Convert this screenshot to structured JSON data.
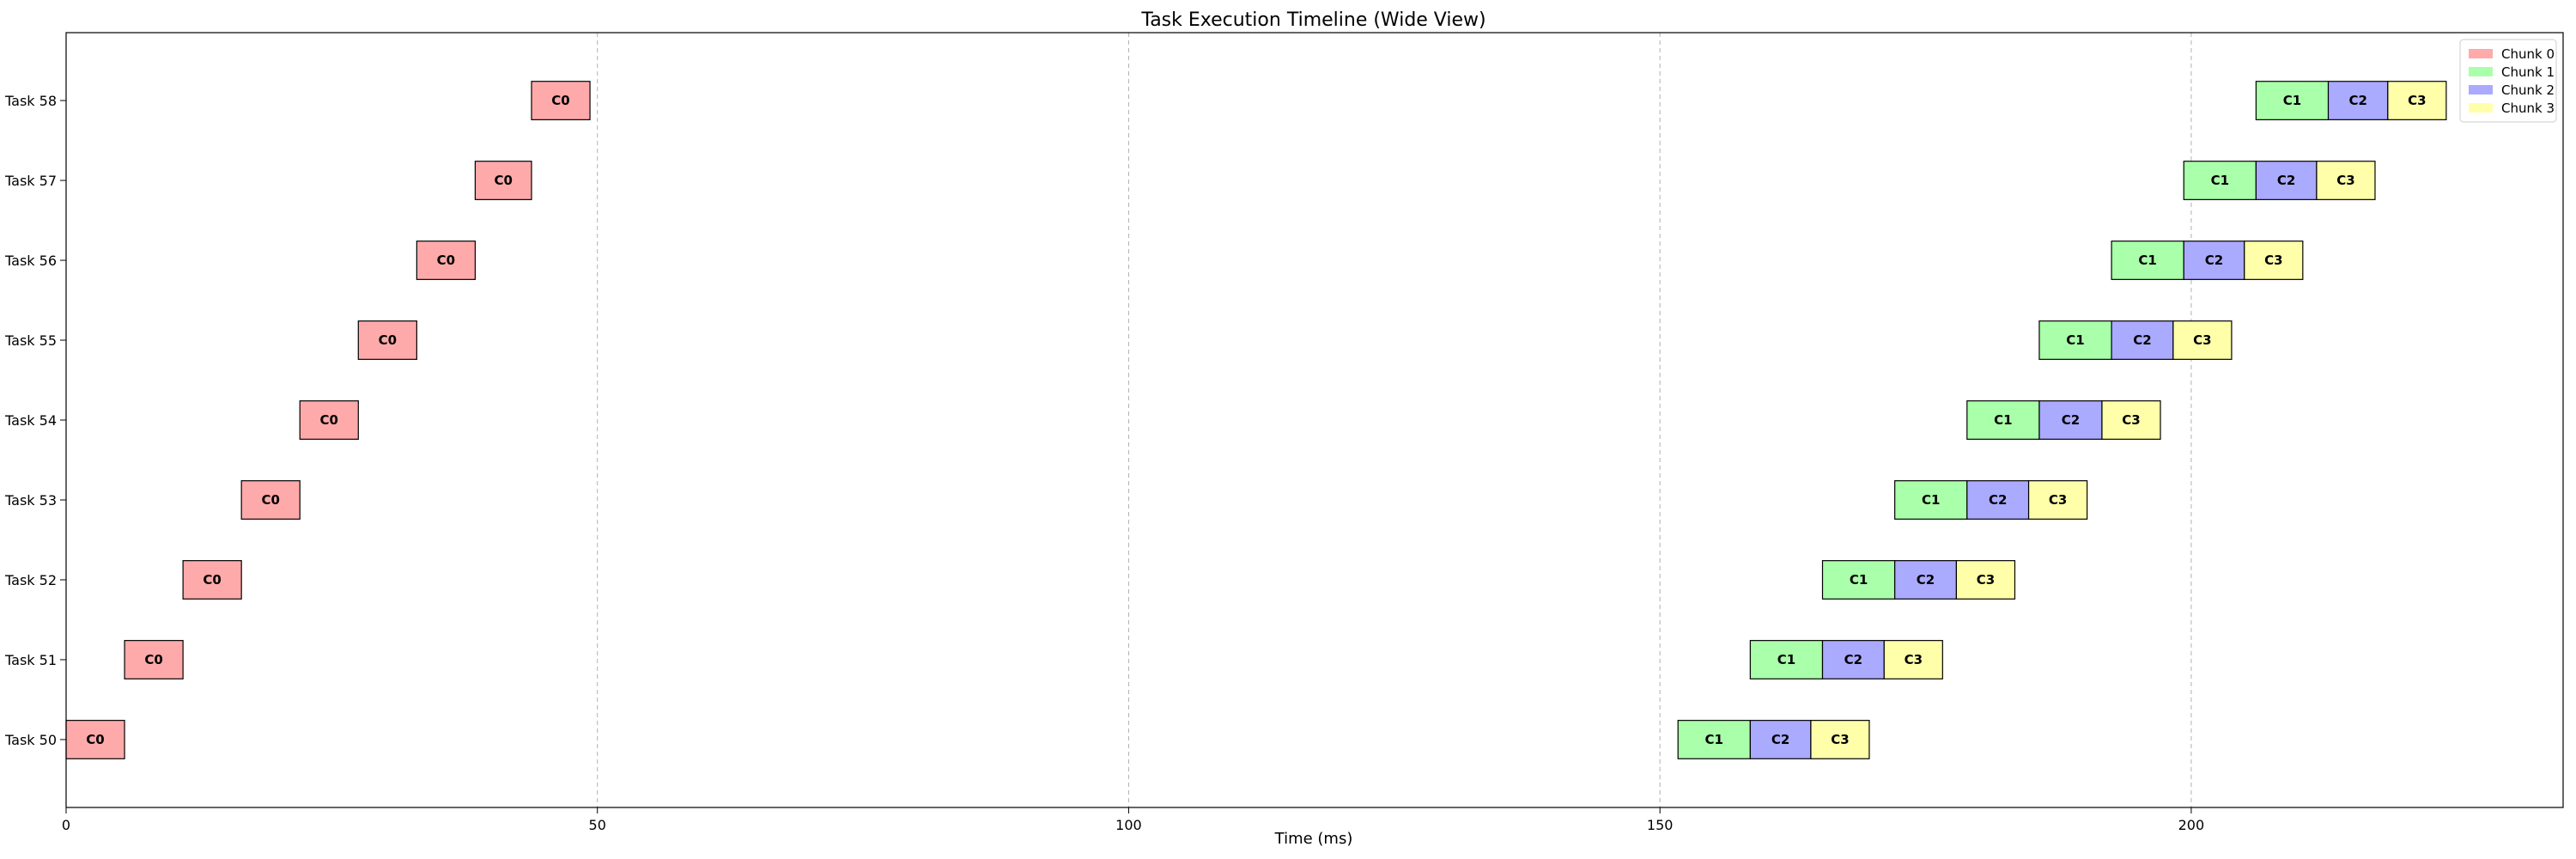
{
  "chart_data": {
    "type": "bar",
    "orientation": "horizontal-timeline",
    "title": "Task Execution Timeline (Wide View)",
    "xlabel": "Time (ms)",
    "ylabel": "",
    "xlim": [
      0,
      235
    ],
    "xticks": [
      0,
      50,
      100,
      150,
      200
    ],
    "grid": "x-dashed",
    "legend_position": "top-right",
    "categories": [
      "Task 50",
      "Task 51",
      "Task 52",
      "Task 53",
      "Task 54",
      "Task 55",
      "Task 56",
      "Task 57",
      "Task 58"
    ],
    "series": [
      {
        "name": "Chunk 0",
        "label": "C0",
        "color": "#ffaaaa",
        "bars": [
          {
            "task": "Task 50",
            "start": 0.0,
            "duration": 5.5
          },
          {
            "task": "Task 51",
            "start": 5.5,
            "duration": 5.5
          },
          {
            "task": "Task 52",
            "start": 11.0,
            "duration": 5.5
          },
          {
            "task": "Task 53",
            "start": 16.5,
            "duration": 5.5
          },
          {
            "task": "Task 54",
            "start": 22.0,
            "duration": 5.5
          },
          {
            "task": "Task 55",
            "start": 27.5,
            "duration": 5.5
          },
          {
            "task": "Task 56",
            "start": 33.0,
            "duration": 5.5
          },
          {
            "task": "Task 57",
            "start": 38.5,
            "duration": 5.3
          },
          {
            "task": "Task 58",
            "start": 43.8,
            "duration": 5.5
          }
        ]
      },
      {
        "name": "Chunk 1",
        "label": "C1",
        "color": "#aaffaa",
        "bars": [
          {
            "task": "Task 50",
            "start": 151.7,
            "duration": 6.8
          },
          {
            "task": "Task 51",
            "start": 158.5,
            "duration": 6.8
          },
          {
            "task": "Task 52",
            "start": 165.3,
            "duration": 6.8
          },
          {
            "task": "Task 53",
            "start": 172.1,
            "duration": 6.8
          },
          {
            "task": "Task 54",
            "start": 178.9,
            "duration": 6.8
          },
          {
            "task": "Task 55",
            "start": 185.7,
            "duration": 6.8
          },
          {
            "task": "Task 56",
            "start": 192.5,
            "duration": 6.8
          },
          {
            "task": "Task 57",
            "start": 199.3,
            "duration": 6.8
          },
          {
            "task": "Task 58",
            "start": 206.1,
            "duration": 6.8
          }
        ]
      },
      {
        "name": "Chunk 2",
        "label": "C2",
        "color": "#aaaaff",
        "bars": [
          {
            "task": "Task 50",
            "start": 158.5,
            "duration": 5.7
          },
          {
            "task": "Task 51",
            "start": 165.3,
            "duration": 5.8
          },
          {
            "task": "Task 52",
            "start": 172.1,
            "duration": 5.8
          },
          {
            "task": "Task 53",
            "start": 178.9,
            "duration": 5.8
          },
          {
            "task": "Task 54",
            "start": 185.7,
            "duration": 5.9
          },
          {
            "task": "Task 55",
            "start": 192.5,
            "duration": 5.8
          },
          {
            "task": "Task 56",
            "start": 199.3,
            "duration": 5.7
          },
          {
            "task": "Task 57",
            "start": 206.1,
            "duration": 5.7
          },
          {
            "task": "Task 58",
            "start": 212.9,
            "duration": 5.6
          }
        ]
      },
      {
        "name": "Chunk 3",
        "label": "C3",
        "color": "#ffffaa",
        "bars": [
          {
            "task": "Task 50",
            "start": 164.2,
            "duration": 5.5
          },
          {
            "task": "Task 51",
            "start": 171.1,
            "duration": 5.5
          },
          {
            "task": "Task 52",
            "start": 177.9,
            "duration": 5.5
          },
          {
            "task": "Task 53",
            "start": 184.7,
            "duration": 5.5
          },
          {
            "task": "Task 54",
            "start": 191.6,
            "duration": 5.5
          },
          {
            "task": "Task 55",
            "start": 198.3,
            "duration": 5.5
          },
          {
            "task": "Task 56",
            "start": 205.0,
            "duration": 5.5
          },
          {
            "task": "Task 57",
            "start": 211.8,
            "duration": 5.5
          },
          {
            "task": "Task 58",
            "start": 218.5,
            "duration": 5.5
          }
        ]
      }
    ]
  }
}
